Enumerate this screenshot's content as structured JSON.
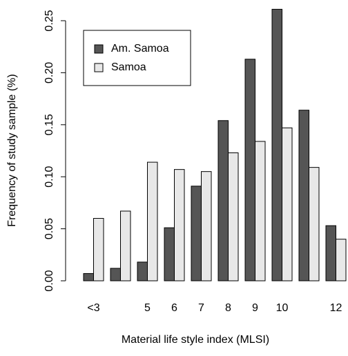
{
  "chart_data": {
    "type": "bar",
    "x_label": "Material life style index (MLSI)",
    "y_label": "Frequency of study sample (%)",
    "categories": [
      "<3",
      null,
      "5",
      "6",
      "7",
      "8",
      "9",
      "10",
      null,
      "12"
    ],
    "series": [
      {
        "name": "Am. Samoa",
        "color": "#555555",
        "values": [
          0.007,
          0.012,
          0.018,
          0.051,
          0.091,
          0.154,
          0.213,
          0.261,
          0.164,
          0.053
        ]
      },
      {
        "name": "Samoa",
        "color": "#e8e8e8",
        "values": [
          0.06,
          0.067,
          0.114,
          0.107,
          0.105,
          0.123,
          0.134,
          0.147,
          0.109,
          0.04
        ]
      }
    ],
    "ylim": [
      0,
      0.27
    ],
    "yticks": [
      {
        "value": 0,
        "label": "0.00"
      },
      0.05,
      {
        "value": 0.1,
        "label": "0.10"
      },
      0.15,
      {
        "value": 0.2,
        "label": "0.20"
      },
      0.25
    ],
    "legend": "topleft"
  }
}
